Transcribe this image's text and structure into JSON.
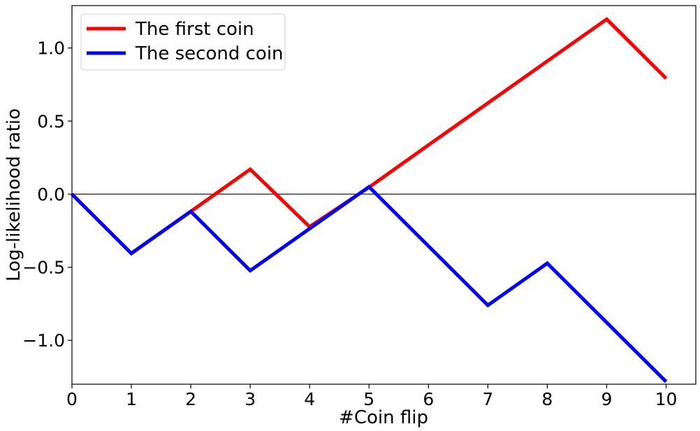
{
  "chart_data": {
    "type": "line",
    "xlabel": "#Coin flip",
    "ylabel": "Log-likelihood ratio",
    "xlim": [
      0,
      10.5
    ],
    "ylim": [
      -1.3,
      1.29
    ],
    "xticks": [
      0,
      1,
      2,
      3,
      4,
      5,
      6,
      7,
      8,
      9,
      10
    ],
    "xtick_labels": [
      "0",
      "1",
      "2",
      "3",
      "4",
      "5",
      "6",
      "7",
      "8",
      "9",
      "10"
    ],
    "yticks": [
      1.0,
      0.5,
      0.0,
      -0.5,
      -1.0
    ],
    "ytick_labels": [
      "1.0",
      "0.5",
      "0.0",
      "−0.5",
      "−1.0"
    ],
    "hline": 0,
    "grid": false,
    "legend_position": "top-left",
    "series": [
      {
        "name": "The first coin",
        "color": "#ff0000",
        "x": [
          0,
          1,
          2,
          3,
          4,
          5,
          6,
          7,
          8,
          9,
          10
        ],
        "y": [
          0,
          -0.405,
          -0.118,
          0.17,
          -0.223,
          0.047,
          0.336,
          0.623,
          0.91,
          1.197,
          0.792
        ]
      },
      {
        "name": "The second coin",
        "color": "#0000ff",
        "x": [
          0,
          1,
          2,
          3,
          4,
          5,
          6,
          7,
          8,
          9,
          10
        ],
        "y": [
          0,
          -0.405,
          -0.118,
          -0.523,
          -0.236,
          0.05,
          -0.355,
          -0.76,
          -0.473,
          -0.878,
          -1.283
        ]
      }
    ]
  }
}
